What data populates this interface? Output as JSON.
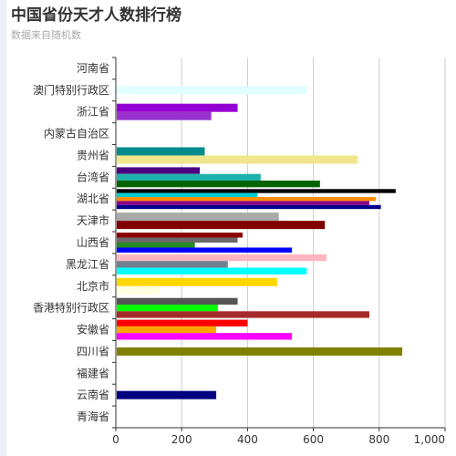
{
  "header": {
    "title": "中国省份天才人数排行榜",
    "subtitle": "数据来自随机数"
  },
  "colors": {
    "grid": "#cccccc",
    "axis": "#333333",
    "tick_text": "#333333"
  },
  "chart_data": {
    "type": "bar",
    "orientation": "horizontal",
    "title": "中国省份天才人数排行榜",
    "subtitle": "数据来自随机数",
    "xlim": [
      0,
      1000
    ],
    "xticks": [
      0,
      200,
      400,
      600,
      800,
      1000
    ],
    "xtick_labels": [
      "0",
      "200",
      "400",
      "600",
      "800",
      "1,000"
    ],
    "grid": true,
    "categories": [
      "河南省",
      "澳门特别行政区",
      "浙江省",
      "内蒙古自治区",
      "贵州省",
      "台湾省",
      "湖北省",
      "天津市",
      "山西省",
      "黑龙江省",
      "北京市",
      "香港特别行政区",
      "安徽省",
      "四川省",
      "福建省",
      "云南省",
      "青海省"
    ],
    "bars": [
      {
        "category": "澳门特别行政区",
        "value": 580,
        "color": "#e0ffff"
      },
      {
        "category": "浙江省",
        "value": 370,
        "color": "#9400d3"
      },
      {
        "category": "浙江省",
        "value": 290,
        "color": "#9932cc"
      },
      {
        "category": "贵州省",
        "value": 270,
        "color": "#008b8b"
      },
      {
        "category": "贵州省",
        "value": 735,
        "color": "#f0e68c"
      },
      {
        "category": "台湾省",
        "value": 255,
        "color": "#4b0082"
      },
      {
        "category": "台湾省",
        "value": 440,
        "color": "#20b2aa"
      },
      {
        "category": "台湾省",
        "value": 620,
        "color": "#006400"
      },
      {
        "category": "湖北省",
        "value": 850,
        "color": "#000000"
      },
      {
        "category": "湖北省",
        "value": 430,
        "color": "#00ced1"
      },
      {
        "category": "湖北省",
        "value": 790,
        "color": "#ff8c00"
      },
      {
        "category": "湖北省",
        "value": 770,
        "color": "#8b008b"
      },
      {
        "category": "湖北省",
        "value": 805,
        "color": "#00008b"
      },
      {
        "category": "天津市",
        "value": 495,
        "color": "#a9a9a9"
      },
      {
        "category": "天津市",
        "value": 635,
        "color": "#800000"
      },
      {
        "category": "山西省",
        "value": 385,
        "color": "#8b0000"
      },
      {
        "category": "山西省",
        "value": 370,
        "color": "#696969"
      },
      {
        "category": "山西省",
        "value": 240,
        "color": "#228b22"
      },
      {
        "category": "山西省",
        "value": 535,
        "color": "#0000ff"
      },
      {
        "category": "黑龙江省",
        "value": 640,
        "color": "#ffb6c1"
      },
      {
        "category": "黑龙江省",
        "value": 340,
        "color": "#708090"
      },
      {
        "category": "黑龙江省",
        "value": 580,
        "color": "#00ffff"
      },
      {
        "category": "北京市",
        "value": 490,
        "color": "#ffd700"
      },
      {
        "category": "北京市",
        "value": 130,
        "color": "#ffffe0"
      },
      {
        "category": "香港特别行政区",
        "value": 370,
        "color": "#555555"
      },
      {
        "category": "香港特别行政区",
        "value": 310,
        "color": "#00ff00"
      },
      {
        "category": "香港特别行政区",
        "value": 770,
        "color": "#a52a2a"
      },
      {
        "category": "安徽省",
        "value": 400,
        "color": "#ff0000"
      },
      {
        "category": "安徽省",
        "value": 305,
        "color": "#ffa500"
      },
      {
        "category": "安徽省",
        "value": 535,
        "color": "#ff00ff"
      },
      {
        "category": "四川省",
        "value": 870,
        "color": "#808000"
      },
      {
        "category": "云南省",
        "value": 305,
        "color": "#000080"
      }
    ]
  }
}
